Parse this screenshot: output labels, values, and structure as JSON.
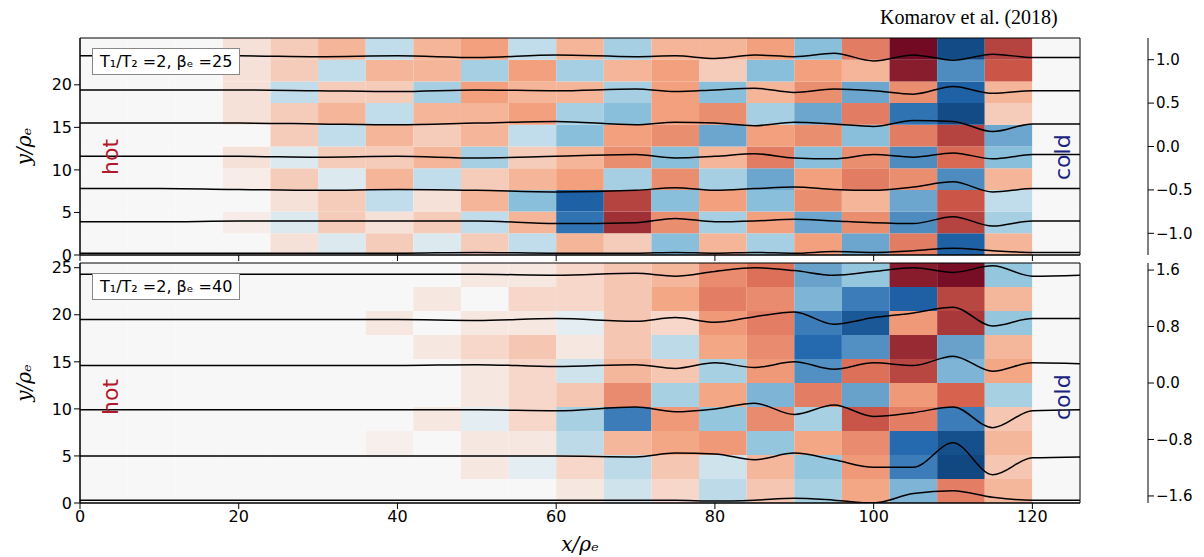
{
  "chart_data": [
    {
      "type": "heatmap",
      "title": "Komarov et al. (2018)",
      "annotation": "T₁/T₂ =2, βₑ =25",
      "y_label": "y/ρₑ",
      "side_labels": {
        "left": "hot",
        "right": "cold"
      },
      "xlim": [
        0,
        126
      ],
      "xticks": [
        0,
        20,
        40,
        60,
        80,
        100,
        120
      ],
      "ylim": [
        0,
        25.5
      ],
      "yticks": [
        0,
        5,
        10,
        15,
        20
      ],
      "tick_labels": "y",
      "cells": {
        "x_bins": [
          0,
          6,
          12,
          18,
          24,
          30,
          36,
          42,
          48,
          54,
          60,
          66,
          72,
          78,
          84,
          90,
          96,
          102,
          108,
          114,
          120,
          126
        ],
        "y_bins": [
          0,
          2.55,
          5.1,
          7.65,
          10.2,
          12.75,
          15.3,
          17.85,
          20.4,
          22.95,
          25.5
        ],
        "values": [
          [
            0,
            0,
            0,
            0,
            0.1,
            -0.1,
            0.2,
            -0.1,
            0.2,
            -0.2,
            0.3,
            0.2,
            -0.4,
            0.3,
            -0.3,
            0.4,
            -0.5,
            0.6,
            -0.8,
            0.3,
            0
          ],
          [
            0,
            0,
            0,
            0.05,
            -0.1,
            0.2,
            0.1,
            0.2,
            -0.2,
            0.3,
            -0.7,
            1.0,
            0.5,
            -0.3,
            0.4,
            -0.5,
            0.5,
            -0.6,
            0.9,
            -0.3,
            0
          ],
          [
            0,
            0,
            0,
            0,
            0.1,
            0.2,
            -0.2,
            0.1,
            0.3,
            -0.4,
            -0.8,
            0.9,
            -0.4,
            0.4,
            -0.4,
            0.5,
            0.3,
            -0.5,
            0.8,
            -0.2,
            0
          ],
          [
            0,
            0,
            0,
            0.05,
            0.2,
            -0.1,
            0.3,
            -0.2,
            0.2,
            0.3,
            0.4,
            -0.3,
            0.5,
            -0.3,
            -0.5,
            0.4,
            0.6,
            0.5,
            -0.6,
            0.3,
            0
          ],
          [
            0,
            0,
            0,
            0.1,
            -0.1,
            0.2,
            0.2,
            0.3,
            -0.3,
            0.2,
            0.3,
            0.5,
            -0.4,
            0.3,
            0.6,
            -0.4,
            0.5,
            -0.6,
            0.7,
            -0.4,
            0
          ],
          [
            0,
            0,
            0,
            0,
            0.2,
            -0.2,
            0.3,
            0.2,
            0.3,
            -0.2,
            -0.4,
            0.4,
            0.5,
            -0.5,
            0.4,
            0.5,
            -0.4,
            0.6,
            0.9,
            -0.5,
            0
          ],
          [
            0,
            0,
            0,
            0.1,
            0.2,
            0.3,
            -0.2,
            0.3,
            0.3,
            0.4,
            -0.3,
            -0.4,
            0.4,
            0.5,
            -0.3,
            -0.5,
            0.6,
            -0.7,
            -1.0,
            0.2,
            0
          ],
          [
            0,
            0,
            0,
            0.1,
            -0.2,
            0.2,
            0.2,
            -0.3,
            0.4,
            0.3,
            0.3,
            -0.3,
            0.4,
            -0.4,
            0.3,
            0.5,
            -0.5,
            0.5,
            -0.8,
            0.3,
            0
          ],
          [
            0,
            0,
            0,
            0.1,
            0.2,
            -0.2,
            0.3,
            0.3,
            -0.3,
            0.4,
            -0.3,
            0.3,
            0.4,
            0.2,
            -0.4,
            0.4,
            0.3,
            1.1,
            -0.6,
            0.8,
            0
          ],
          [
            0,
            0,
            0,
            0.1,
            0.2,
            0.3,
            -0.2,
            0.3,
            0.4,
            -0.2,
            0.3,
            -0.3,
            0.3,
            0.3,
            0.4,
            -0.4,
            0.6,
            1.2,
            -1.0,
            0.9,
            0
          ]
        ]
      },
      "colorbar": {
        "range": [
          -1.25,
          1.25
        ],
        "ticks": [
          {
            "value": -1,
            "label": "−1.0"
          },
          {
            "value": -0.5,
            "label": "−0.5"
          },
          {
            "value": 0,
            "label": "0.0"
          },
          0.5,
          {
            "value": 1,
            "label": "1.0"
          }
        ]
      },
      "field_lines": {
        "x": [
          0,
          10,
          20,
          30,
          40,
          50,
          60,
          70,
          75,
          80,
          85,
          90,
          95,
          100,
          105,
          110,
          115,
          120,
          126
        ],
        "series": [
          [
            0.2,
            0.2,
            0.2,
            0.2,
            0.2,
            0.3,
            0.2,
            0.2,
            0.3,
            0.2,
            0.3,
            0.2,
            0.4,
            0.3,
            0.5,
            0.8,
            0.5,
            0.3,
            0.3
          ],
          [
            3.9,
            3.9,
            4.0,
            4.0,
            4.0,
            4.0,
            3.7,
            3.8,
            4.3,
            3.9,
            4.0,
            4.2,
            4.0,
            3.8,
            3.7,
            4.5,
            3.4,
            4.0,
            4.0
          ],
          [
            7.8,
            7.8,
            7.7,
            7.6,
            7.7,
            7.6,
            7.4,
            7.6,
            7.9,
            7.6,
            7.8,
            8.0,
            7.7,
            7.6,
            8.0,
            8.6,
            7.4,
            7.8,
            7.8
          ],
          [
            11.6,
            11.6,
            11.6,
            11.5,
            11.6,
            11.4,
            11.6,
            11.8,
            11.4,
            11.6,
            11.9,
            11.4,
            11.3,
            11.8,
            11.5,
            12.0,
            11.3,
            11.8,
            11.8
          ],
          [
            15.5,
            15.5,
            15.5,
            15.4,
            15.3,
            15.5,
            15.7,
            15.3,
            15.6,
            15.5,
            15.2,
            15.6,
            15.4,
            15.1,
            15.8,
            15.7,
            14.5,
            15.4,
            15.4
          ],
          [
            19.4,
            19.4,
            19.4,
            19.3,
            19.2,
            19.4,
            19.3,
            19.5,
            19.2,
            19.4,
            19.6,
            19.1,
            19.5,
            19.3,
            18.9,
            19.8,
            19.0,
            19.3,
            19.3
          ],
          [
            23.4,
            23.4,
            23.4,
            23.3,
            23.4,
            23.2,
            23.5,
            23.3,
            23.4,
            23.1,
            23.5,
            23.3,
            23.7,
            22.8,
            23.5,
            22.9,
            23.6,
            23.2,
            23.2
          ]
        ]
      }
    },
    {
      "type": "heatmap",
      "annotation": "T₁/T₂ =2, βₑ =40",
      "x_label": "x/ρₑ",
      "y_label": "y/ρₑ",
      "side_labels": {
        "left": "hot",
        "right": "cold"
      },
      "xlim": [
        0,
        126
      ],
      "xticks": [
        0,
        20,
        40,
        60,
        80,
        100,
        120
      ],
      "ylim": [
        0,
        25.5
      ],
      "yticks": [
        0,
        5,
        10,
        15,
        20,
        25
      ],
      "cells": {
        "x_bins": [
          0,
          6,
          12,
          18,
          24,
          30,
          36,
          42,
          48,
          54,
          60,
          66,
          72,
          78,
          84,
          90,
          96,
          102,
          108,
          114,
          120,
          126
        ],
        "y_bins": [
          0,
          2.55,
          5.1,
          7.65,
          10.2,
          12.75,
          15.3,
          17.85,
          20.4,
          22.95,
          25.5
        ],
        "values": [
          [
            0,
            0,
            0,
            0,
            0,
            0,
            0,
            0,
            0,
            0,
            0.1,
            -0.2,
            0.2,
            -0.3,
            0.3,
            -0.4,
            0.5,
            -0.6,
            0.8,
            0.4,
            0
          ],
          [
            0,
            0,
            0,
            0,
            0,
            0,
            0,
            0,
            0.1,
            -0.1,
            0.2,
            -0.3,
            0.3,
            -0.2,
            0.4,
            -0.5,
            0.6,
            -0.9,
            -1.4,
            0.3,
            0
          ],
          [
            0,
            0,
            0,
            0,
            0,
            0,
            0.05,
            0,
            0.1,
            0.1,
            -0.3,
            0.4,
            0.5,
            0.6,
            -0.5,
            0.5,
            0.7,
            -1.0,
            -1.3,
            0.4,
            0
          ],
          [
            0,
            0,
            0,
            0,
            0,
            0,
            0,
            0.1,
            -0.1,
            0.2,
            -0.4,
            -0.9,
            0.6,
            -0.5,
            0.7,
            -0.4,
            1.1,
            0.8,
            -0.9,
            0.3,
            0
          ],
          [
            0,
            0,
            0,
            0,
            0,
            0,
            0,
            0,
            0.1,
            0.2,
            0.3,
            0.7,
            -0.4,
            0.5,
            -0.6,
            0.8,
            -0.7,
            0.6,
            1.0,
            -0.4,
            0
          ],
          [
            0,
            0,
            0,
            0,
            0,
            0,
            0,
            0,
            0.1,
            0.2,
            -0.2,
            0.4,
            0.3,
            -0.4,
            0.6,
            -0.8,
            0.9,
            1.2,
            -0.6,
            0.5,
            0
          ],
          [
            0,
            0,
            0,
            0,
            0,
            0,
            0,
            0.1,
            0.2,
            0.3,
            0.1,
            0.3,
            -0.3,
            0.5,
            0.7,
            -1.0,
            -0.8,
            1.4,
            -0.7,
            0.4,
            0
          ],
          [
            0,
            0,
            0,
            0,
            0,
            0,
            0.1,
            0,
            0.1,
            0.1,
            -0.1,
            0.3,
            0.2,
            0.6,
            0.8,
            -0.9,
            -1.2,
            0.6,
            1.3,
            -0.5,
            0
          ],
          [
            0,
            0,
            0,
            0,
            0,
            0,
            0,
            0.1,
            0,
            0.2,
            0.2,
            0.3,
            0.5,
            0.8,
            0.7,
            -0.6,
            -0.9,
            -1.1,
            1.2,
            0.4,
            0
          ],
          [
            0,
            0,
            0,
            0,
            0,
            0,
            0,
            0,
            0.1,
            0.1,
            0.2,
            0.3,
            0.4,
            0.7,
            0.9,
            -0.7,
            -0.5,
            1.5,
            1.6,
            -0.5,
            0
          ]
        ]
      },
      "colorbar": {
        "range": [
          -1.7,
          1.7
        ],
        "ticks": [
          {
            "value": -1.6,
            "label": "−1.6"
          },
          {
            "value": -0.8,
            "label": "−0.8"
          },
          {
            "value": 0,
            "label": "0.0"
          },
          0.8,
          1.6
        ]
      },
      "field_lines": {
        "x": [
          0,
          10,
          20,
          30,
          40,
          50,
          60,
          70,
          75,
          80,
          85,
          90,
          95,
          100,
          105,
          110,
          115,
          120,
          126
        ],
        "series": [
          [
            0.3,
            0.3,
            0.3,
            0.3,
            0.3,
            0.3,
            0.3,
            0.3,
            0.3,
            0.2,
            0.3,
            0.5,
            0.3,
            0.0,
            1.0,
            1.3,
            0.6,
            0.3,
            0.3
          ],
          [
            5.0,
            5.0,
            5.0,
            5.0,
            5.0,
            5.0,
            5.0,
            4.9,
            5.3,
            5.2,
            4.6,
            5.3,
            4.6,
            3.8,
            3.8,
            6.4,
            3.0,
            4.8,
            4.9
          ],
          [
            9.9,
            9.9,
            9.9,
            9.9,
            9.9,
            9.9,
            9.8,
            10.2,
            9.7,
            10.0,
            10.6,
            9.4,
            10.4,
            9.2,
            9.6,
            10.2,
            8.0,
            9.8,
            9.9
          ],
          [
            14.6,
            14.6,
            14.6,
            14.6,
            14.6,
            14.7,
            14.5,
            14.7,
            14.3,
            14.9,
            14.4,
            15.0,
            14.2,
            14.9,
            14.6,
            15.6,
            14.0,
            14.9,
            14.8
          ],
          [
            19.5,
            19.5,
            19.5,
            19.5,
            19.5,
            19.4,
            19.6,
            19.3,
            19.7,
            19.2,
            19.8,
            20.3,
            19.0,
            19.7,
            20.2,
            20.8,
            18.8,
            19.6,
            19.6
          ],
          [
            24.3,
            24.3,
            24.3,
            24.3,
            24.3,
            24.3,
            24.2,
            24.4,
            24.1,
            24.6,
            25.0,
            24.7,
            24.2,
            24.6,
            25.0,
            24.5,
            25.2,
            24.1,
            24.2
          ]
        ]
      }
    }
  ]
}
